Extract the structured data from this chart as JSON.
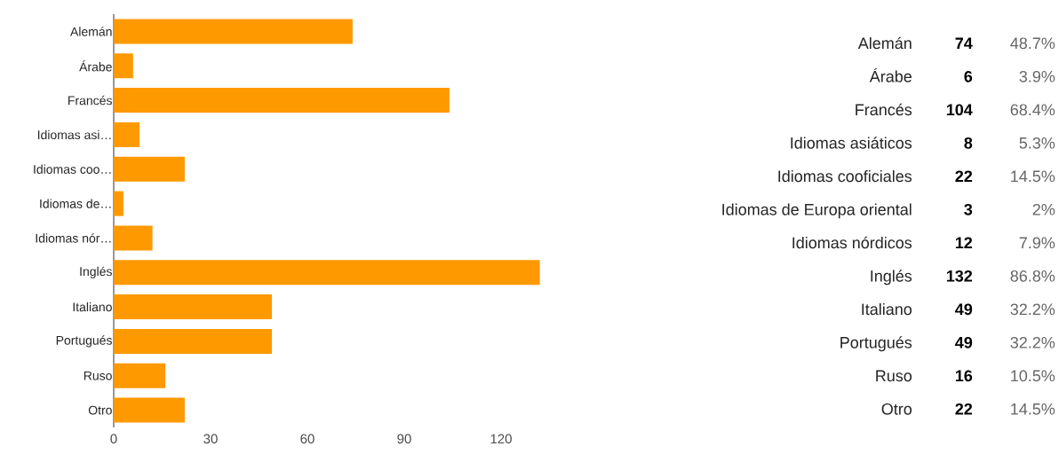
{
  "chart_data": [
    {
      "type": "bar",
      "orientation": "horizontal",
      "categories": [
        "Alemán",
        "Árabe",
        "Francés",
        "Idiomas asi…",
        "Idiomas coo…",
        "Idiomas de…",
        "Idiomas nór…",
        "Inglés",
        "Italiano",
        "Portugués",
        "Ruso",
        "Otro"
      ],
      "values": [
        74,
        6,
        104,
        8,
        22,
        3,
        12,
        132,
        49,
        49,
        16,
        22
      ],
      "color": "#ff9900",
      "xlim": [
        0,
        132
      ],
      "xticks": [
        0,
        30,
        60,
        90,
        120
      ]
    },
    {
      "type": "other",
      "categories": [
        "Alemán",
        "Árabe",
        "Francés",
        "Idiomas asiáticos",
        "Idiomas cooficiales",
        "Idiomas de Europa oriental",
        "Idiomas nórdicos",
        "Inglés",
        "Italiano",
        "Portugués",
        "Ruso",
        "Otro"
      ],
      "series": [
        {
          "values": [
            74,
            6,
            104,
            8,
            22,
            3,
            12,
            132,
            49,
            49,
            16,
            22
          ]
        },
        {
          "values": [
            48.7,
            3.9,
            68.4,
            5.3,
            14.5,
            2,
            7.9,
            86.8,
            32.2,
            32.2,
            10.5,
            14.5
          ],
          "value_labels": [
            "48.7%",
            "3.9%",
            "68.4%",
            "5.3%",
            "14.5%",
            "2%",
            "7.9%",
            "86.8%",
            "32.2%",
            "32.2%",
            "10.5%",
            "14.5%"
          ]
        }
      ],
      "data_labels": true
    }
  ]
}
